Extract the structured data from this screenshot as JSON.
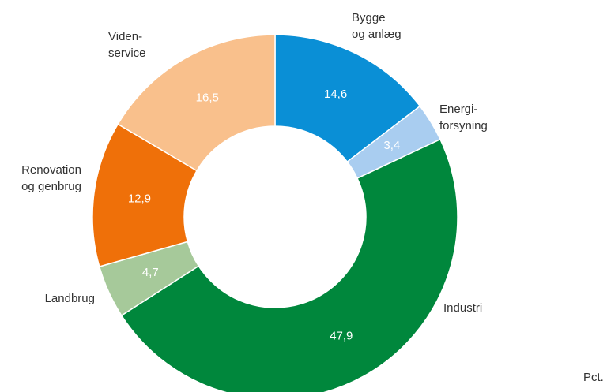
{
  "chart_data": {
    "type": "donut",
    "categories": [
      "Bygge\nog anlæg",
      "Energi-\nforsyning",
      "Industri",
      "Landbrug",
      "Renovation\nog genbrug",
      "Viden-\nservice"
    ],
    "values": [
      14.6,
      3.4,
      47.9,
      4.7,
      12.9,
      16.5
    ],
    "value_labels": [
      "14,6",
      "3,4",
      "47,9",
      "4,7",
      "12,9",
      "16,5"
    ],
    "colors": [
      "#0a8fd6",
      "#a9cdf0",
      "#00873c",
      "#a6c99a",
      "#ef7009",
      "#f9c08c"
    ],
    "note": "Pct."
  }
}
